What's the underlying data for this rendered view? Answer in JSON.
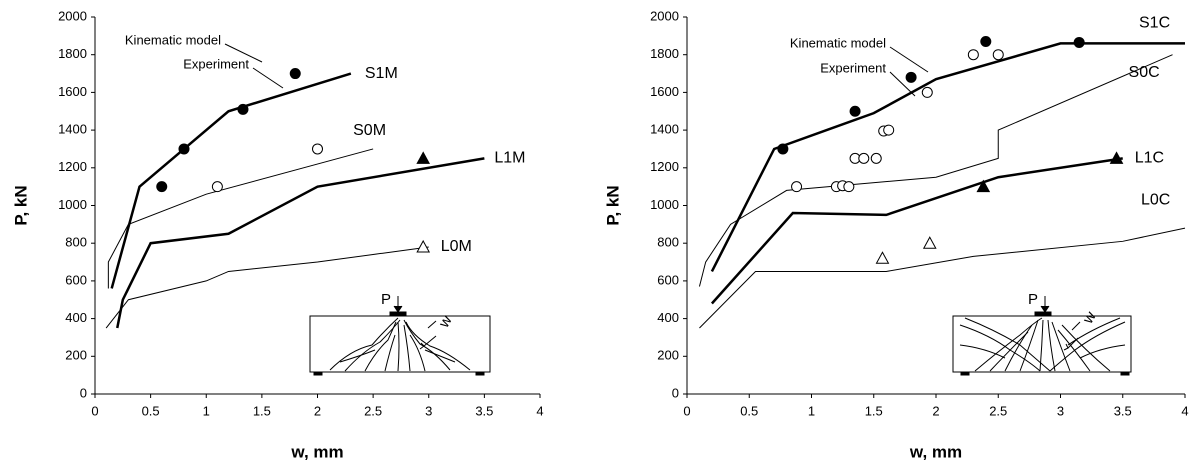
{
  "chart_data": [
    {
      "type": "line",
      "xlabel": "w, mm",
      "ylabel": "P, kN",
      "xlim": [
        0,
        4
      ],
      "xticks": [
        0,
        0.5,
        1,
        1.5,
        2,
        2.5,
        3,
        3.5,
        4
      ],
      "ylim": [
        0,
        2000
      ],
      "yticks": [
        0,
        200,
        400,
        600,
        800,
        1000,
        1200,
        1400,
        1600,
        1800,
        2000
      ],
      "annotations": [
        "Kinematic model",
        "Experiment"
      ],
      "inset_labels": [
        "P",
        "w"
      ],
      "series": [
        {
          "name": "S1M",
          "color": "#000000",
          "width": 2.5,
          "x": [
            0.15,
            0.4,
            1.2,
            2.3
          ],
          "values": [
            560,
            1100,
            1500,
            1700
          ]
        },
        {
          "name": "S0M",
          "color": "#000000",
          "width": 1,
          "x": [
            0.12,
            0.12,
            0.3,
            1.0,
            2.5
          ],
          "values": [
            560,
            700,
            900,
            1060,
            1300
          ]
        },
        {
          "name": "L1M",
          "color": "#000000",
          "width": 2.5,
          "x": [
            0.2,
            0.25,
            0.5,
            1.2,
            2.0,
            3.5
          ],
          "values": [
            350,
            500,
            800,
            850,
            1100,
            1250
          ]
        },
        {
          "name": "L0M",
          "color": "#000000",
          "width": 1,
          "x": [
            0.1,
            0.3,
            1.0,
            1.2,
            2.0,
            3.0
          ],
          "values": [
            350,
            500,
            600,
            650,
            700,
            780
          ]
        },
        {
          "marker": "filled-circle",
          "color": "#000000",
          "x": [
            0.6,
            0.8,
            1.33,
            1.8
          ],
          "values": [
            1100,
            1300,
            1510,
            1700
          ]
        },
        {
          "marker": "open-circle",
          "color": "#000000",
          "x": [
            1.1,
            2.0
          ],
          "values": [
            1100,
            1300
          ]
        },
        {
          "marker": "filled-triangle",
          "color": "#000000",
          "x": [
            2.95
          ],
          "values": [
            1250
          ]
        },
        {
          "marker": "open-triangle",
          "color": "#000000",
          "x": [
            2.95
          ],
          "values": [
            780
          ]
        }
      ]
    },
    {
      "type": "line",
      "xlabel": "w, mm",
      "ylabel": "P, kN",
      "xlim": [
        0,
        4
      ],
      "xticks": [
        0,
        0.5,
        1,
        1.5,
        2,
        2.5,
        3,
        3.5,
        4
      ],
      "ylim": [
        0,
        2000
      ],
      "yticks": [
        0,
        200,
        400,
        600,
        800,
        1000,
        1200,
        1400,
        1600,
        1800,
        2000
      ],
      "annotations": [
        "Kinematic model",
        "Experiment"
      ],
      "inset_labels": [
        "P",
        "w"
      ],
      "series": [
        {
          "name": "S1C",
          "color": "#000000",
          "width": 2.5,
          "x": [
            0.2,
            0.7,
            1.5,
            2.0,
            3.0,
            4.0
          ],
          "values": [
            650,
            1300,
            1490,
            1670,
            1860,
            1860
          ]
        },
        {
          "name": "S0C",
          "color": "#000000",
          "width": 1,
          "x": [
            0.1,
            0.15,
            0.35,
            0.8,
            2.0,
            2.5,
            2.5,
            3.9
          ],
          "values": [
            570,
            700,
            900,
            1080,
            1150,
            1250,
            1400,
            1800
          ]
        },
        {
          "name": "L1C",
          "color": "#000000",
          "width": 2.5,
          "x": [
            0.2,
            0.85,
            1.6,
            2.5,
            3.5
          ],
          "values": [
            480,
            960,
            950,
            1150,
            1250
          ]
        },
        {
          "name": "L0C",
          "color": "#000000",
          "width": 1,
          "x": [
            0.1,
            0.55,
            1.6,
            2.3,
            3.5,
            4.0
          ],
          "values": [
            350,
            650,
            650,
            730,
            810,
            880
          ]
        },
        {
          "marker": "filled-circle",
          "color": "#000000",
          "x": [
            0.77,
            1.35,
            1.8,
            2.4,
            3.15
          ],
          "values": [
            1300,
            1500,
            1680,
            1870,
            1865
          ]
        },
        {
          "marker": "open-circle",
          "color": "#000000",
          "x": [
            0.88,
            1.2,
            1.25,
            1.3,
            1.35,
            1.42,
            1.52,
            1.58,
            1.62,
            1.93,
            2.3,
            2.5
          ],
          "values": [
            1100,
            1100,
            1105,
            1100,
            1250,
            1250,
            1250,
            1395,
            1400,
            1600,
            1800,
            1800
          ]
        },
        {
          "marker": "filled-triangle",
          "color": "#000000",
          "x": [
            2.38,
            3.45
          ],
          "values": [
            1100,
            1250
          ]
        },
        {
          "marker": "open-triangle",
          "color": "#000000",
          "x": [
            1.57,
            1.95
          ],
          "values": [
            720,
            800
          ]
        }
      ]
    }
  ]
}
